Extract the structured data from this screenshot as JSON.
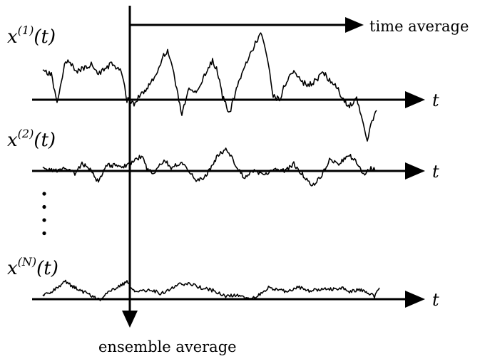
{
  "signals": [
    {
      "name": "x",
      "superscript": "(1)",
      "argument": "(t)",
      "axis_label": "t"
    },
    {
      "name": "x",
      "superscript": "(2)",
      "argument": "(t)",
      "axis_label": "t"
    },
    {
      "name": "x",
      "superscript": "(N)",
      "argument": "(t)",
      "axis_label": "t"
    }
  ],
  "time_average_label": "time average",
  "ensemble_average_label": "ensemble average",
  "ellipsis_dots": 4,
  "colors": {
    "ink": "#000000",
    "background": "#ffffff"
  }
}
